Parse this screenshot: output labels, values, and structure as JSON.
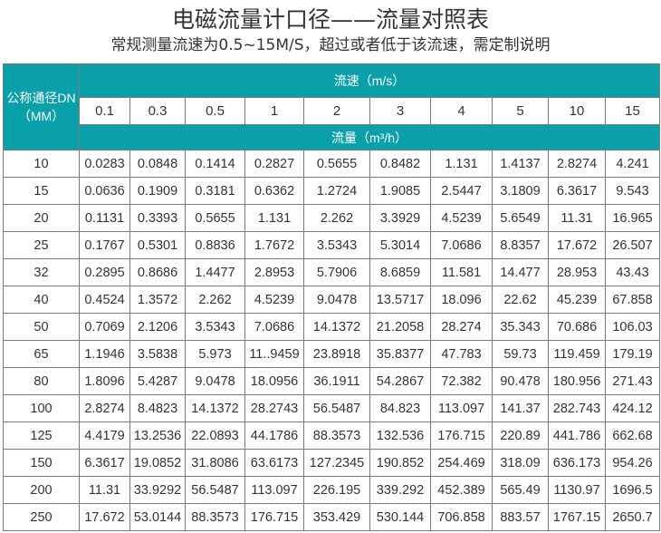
{
  "title": "电磁流量计口径——流量对照表",
  "subtitle": "常规测量流速为0.5~15M/S，超过或者低于该流速，需定制说明",
  "table": {
    "dn_header_line1": "公称通径DN",
    "dn_header_line2": "（MM）",
    "velocity_header": "流速（m/s）",
    "flow_header": "流量（m³/h）",
    "velocities": [
      "0.1",
      "0.3",
      "0.5",
      "1",
      "2",
      "3",
      "4",
      "5",
      "10",
      "15"
    ],
    "rows": [
      {
        "dn": "10",
        "values": [
          "0.0283",
          "0.0848",
          "0.1414",
          "0.2827",
          "0.5655",
          "0.8482",
          "1.131",
          "1.4137",
          "2.8274",
          "4.241"
        ]
      },
      {
        "dn": "15",
        "values": [
          "0.0636",
          "0.1909",
          "0.3181",
          "0.6362",
          "1.2724",
          "1.9085",
          "2.5447",
          "3.1809",
          "6.3617",
          "9.543"
        ]
      },
      {
        "dn": "20",
        "values": [
          "0.1131",
          "0.3393",
          "0.5655",
          "1.131",
          "2.262",
          "3.3929",
          "4.5239",
          "5.6549",
          "11.31",
          "16.965"
        ]
      },
      {
        "dn": "25",
        "values": [
          "0.1767",
          "0.5301",
          "0.8836",
          "1.7672",
          "3.5343",
          "5.3014",
          "7.0686",
          "8.8357",
          "17.672",
          "26.507"
        ]
      },
      {
        "dn": "32",
        "values": [
          "0.2895",
          "0.8686",
          "1.4477",
          "2.8953",
          "5.7906",
          "8.6859",
          "11.581",
          "14.477",
          "28.953",
          "43.43"
        ]
      },
      {
        "dn": "40",
        "values": [
          "0.4524",
          "1.3572",
          "2.262",
          "4.5239",
          "9.0478",
          "13.5717",
          "18.096",
          "22.62",
          "45.239",
          "67.858"
        ]
      },
      {
        "dn": "50",
        "values": [
          "0.7069",
          "2.1206",
          "3.5343",
          "7.0686",
          "14.1372",
          "21.2058",
          "28.274",
          "35.343",
          "70.686",
          "106.03"
        ]
      },
      {
        "dn": "65",
        "values": [
          "1.1946",
          "3.5838",
          "5.973",
          "11..9459",
          "23.8918",
          "35.8377",
          "47.783",
          "59.73",
          "119.459",
          "179.19"
        ]
      },
      {
        "dn": "80",
        "values": [
          "1.8096",
          "5.4287",
          "9.0478",
          "18.0956",
          "36.1911",
          "54.2867",
          "72.382",
          "90.478",
          "180.956",
          "271.43"
        ]
      },
      {
        "dn": "100",
        "values": [
          "2.8274",
          "8.4823",
          "14.1372",
          "28.2743",
          "56.5487",
          "84.823",
          "113.097",
          "141.37",
          "282.743",
          "424.12"
        ]
      },
      {
        "dn": "125",
        "values": [
          "4.4179",
          "13.2536",
          "22.0893",
          "44.1786",
          "88.3573",
          "132.536",
          "176.715",
          "220.89",
          "441.786",
          "662.68"
        ]
      },
      {
        "dn": "150",
        "values": [
          "6.3617",
          "19.0852",
          "31.8086",
          "63.6173",
          "127.2345",
          "190.852",
          "254.469",
          "318.09",
          "636.173",
          "954.26"
        ]
      },
      {
        "dn": "200",
        "values": [
          "11.31",
          "33.9292",
          "56.5487",
          "113.097",
          "226.195",
          "339.292",
          "452.389",
          "565.49",
          "1130.97",
          "1696.5"
        ]
      },
      {
        "dn": "250",
        "values": [
          "17.672",
          "53.0144",
          "88.3573",
          "176.715",
          "353.429",
          "530.144",
          "706.858",
          "883.57",
          "1767.15",
          "2650.7"
        ]
      }
    ]
  },
  "colors": {
    "header_teal": "#0aa0a9",
    "text": "#333333",
    "border": "#7a7a7a"
  }
}
